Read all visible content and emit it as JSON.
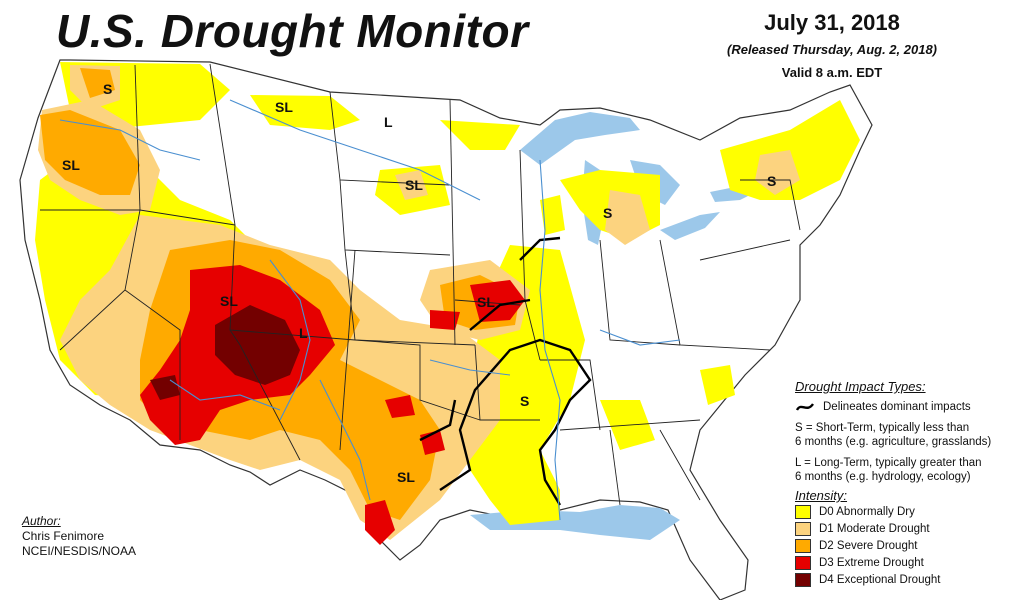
{
  "header": {
    "title": "U.S. Drought Monitor",
    "date": "July 31, 2018",
    "released": "(Released Thursday, Aug. 2, 2018)",
    "valid": "Valid 8 a.m. EDT"
  },
  "author": {
    "heading": "Author:",
    "name": "Chris Fenimore",
    "org": "NCEI/NESDIS/NOAA"
  },
  "map_labels": {
    "s_pnw": "S",
    "sl_oregon": "SL",
    "sl_montana": "SL",
    "l_montana": "L",
    "sl_dakotas": "SL",
    "s_michigan": "S",
    "s_northeast": "S",
    "sl_colorado": "SL",
    "l_southwest": "L",
    "sl_iowa": "SL",
    "s_arkansas": "S",
    "sl_texas": "SL"
  },
  "legend": {
    "impact_heading": "Drought Impact Types:",
    "delineates": "Delineates dominant impacts",
    "s_line1": "S = Short-Term, typically less than",
    "s_line2": "6 months (e.g. agriculture, grasslands)",
    "l_line1": "L = Long-Term, typically greater than",
    "l_line2": "6 months (e.g. hydrology, ecology)",
    "intensity_heading": "Intensity:",
    "categories": [
      {
        "label": "D0 Abnormally Dry",
        "color": "#ffff00"
      },
      {
        "label": "D1 Moderate Drought",
        "color": "#fcd37f"
      },
      {
        "label": "D2 Severe Drought",
        "color": "#ffaa00"
      },
      {
        "label": "D3 Extreme Drought",
        "color": "#e60000"
      },
      {
        "label": "D4 Exceptional Drought",
        "color": "#730000"
      }
    ]
  },
  "colors": {
    "water": "#9cc8ea",
    "state_fill": "#ffffff",
    "state_border": "#222222",
    "river": "#4a8fd0"
  }
}
